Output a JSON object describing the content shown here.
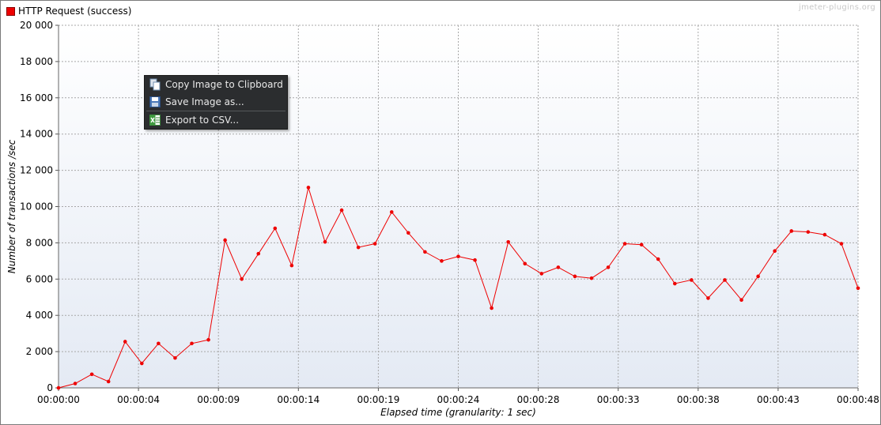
{
  "legend": {
    "label": "HTTP Request (success)",
    "color": "#ee0000"
  },
  "watermark": "jmeter-plugins.org",
  "context_menu": {
    "items": [
      {
        "label": "Copy Image to Clipboard",
        "icon": "copy-icon"
      },
      {
        "label": "Save Image as...",
        "icon": "floppy-disk-icon"
      },
      {
        "label": "Export to CSV...",
        "icon": "spreadsheet-icon"
      }
    ]
  },
  "chart_data": {
    "type": "line",
    "xlabel": "Elapsed time (granularity: 1 sec)",
    "ylabel": "Number of transactions /sec",
    "ylim": [
      0,
      20000
    ],
    "xlim": [
      0,
      48
    ],
    "grid": true,
    "y_tick_labels": [
      "0",
      "2 000",
      "4 000",
      "6 000",
      "8 000",
      "10 000",
      "12 000",
      "14 000",
      "16 000",
      "18 000",
      "20 000"
    ],
    "y_ticks": [
      0,
      2000,
      4000,
      6000,
      8000,
      10000,
      12000,
      14000,
      16000,
      18000,
      20000
    ],
    "x_tick_labels": [
      "00:00:00",
      "00:00:04",
      "00:00:09",
      "00:00:14",
      "00:00:19",
      "00:00:24",
      "00:00:28",
      "00:00:33",
      "00:00:38",
      "00:00:43",
      "00:00:48"
    ],
    "x_ticks": [
      0,
      4.8,
      9.6,
      14.4,
      19.2,
      24,
      28.8,
      33.6,
      38.4,
      43.2,
      48
    ],
    "series": [
      {
        "name": "HTTP Request (success)",
        "color": "#ee0000",
        "x": [
          0,
          1,
          2,
          3,
          4,
          5,
          6,
          7,
          8,
          9,
          10,
          11,
          12,
          13,
          14,
          15,
          16,
          17,
          18,
          19,
          20,
          21,
          22,
          23,
          24,
          25,
          26,
          27,
          28,
          29,
          30,
          31,
          32,
          33,
          34,
          35,
          36,
          37,
          38,
          39,
          40,
          41,
          42,
          43,
          44,
          45,
          46,
          47,
          48
        ],
        "y": [
          0,
          240,
          750,
          350,
          2550,
          1350,
          2450,
          1650,
          2450,
          2650,
          8150,
          6000,
          7400,
          8800,
          6750,
          11050,
          8050,
          9800,
          7750,
          7950,
          9700,
          8550,
          7500,
          7000,
          7250,
          7050,
          4400,
          8050,
          6850,
          6300,
          6650,
          6150,
          6050,
          6650,
          7950,
          7900,
          7100,
          5750,
          5950,
          4950,
          5950,
          4850,
          6150,
          7550,
          8650,
          8600,
          8450,
          7950,
          5500
        ]
      }
    ]
  }
}
